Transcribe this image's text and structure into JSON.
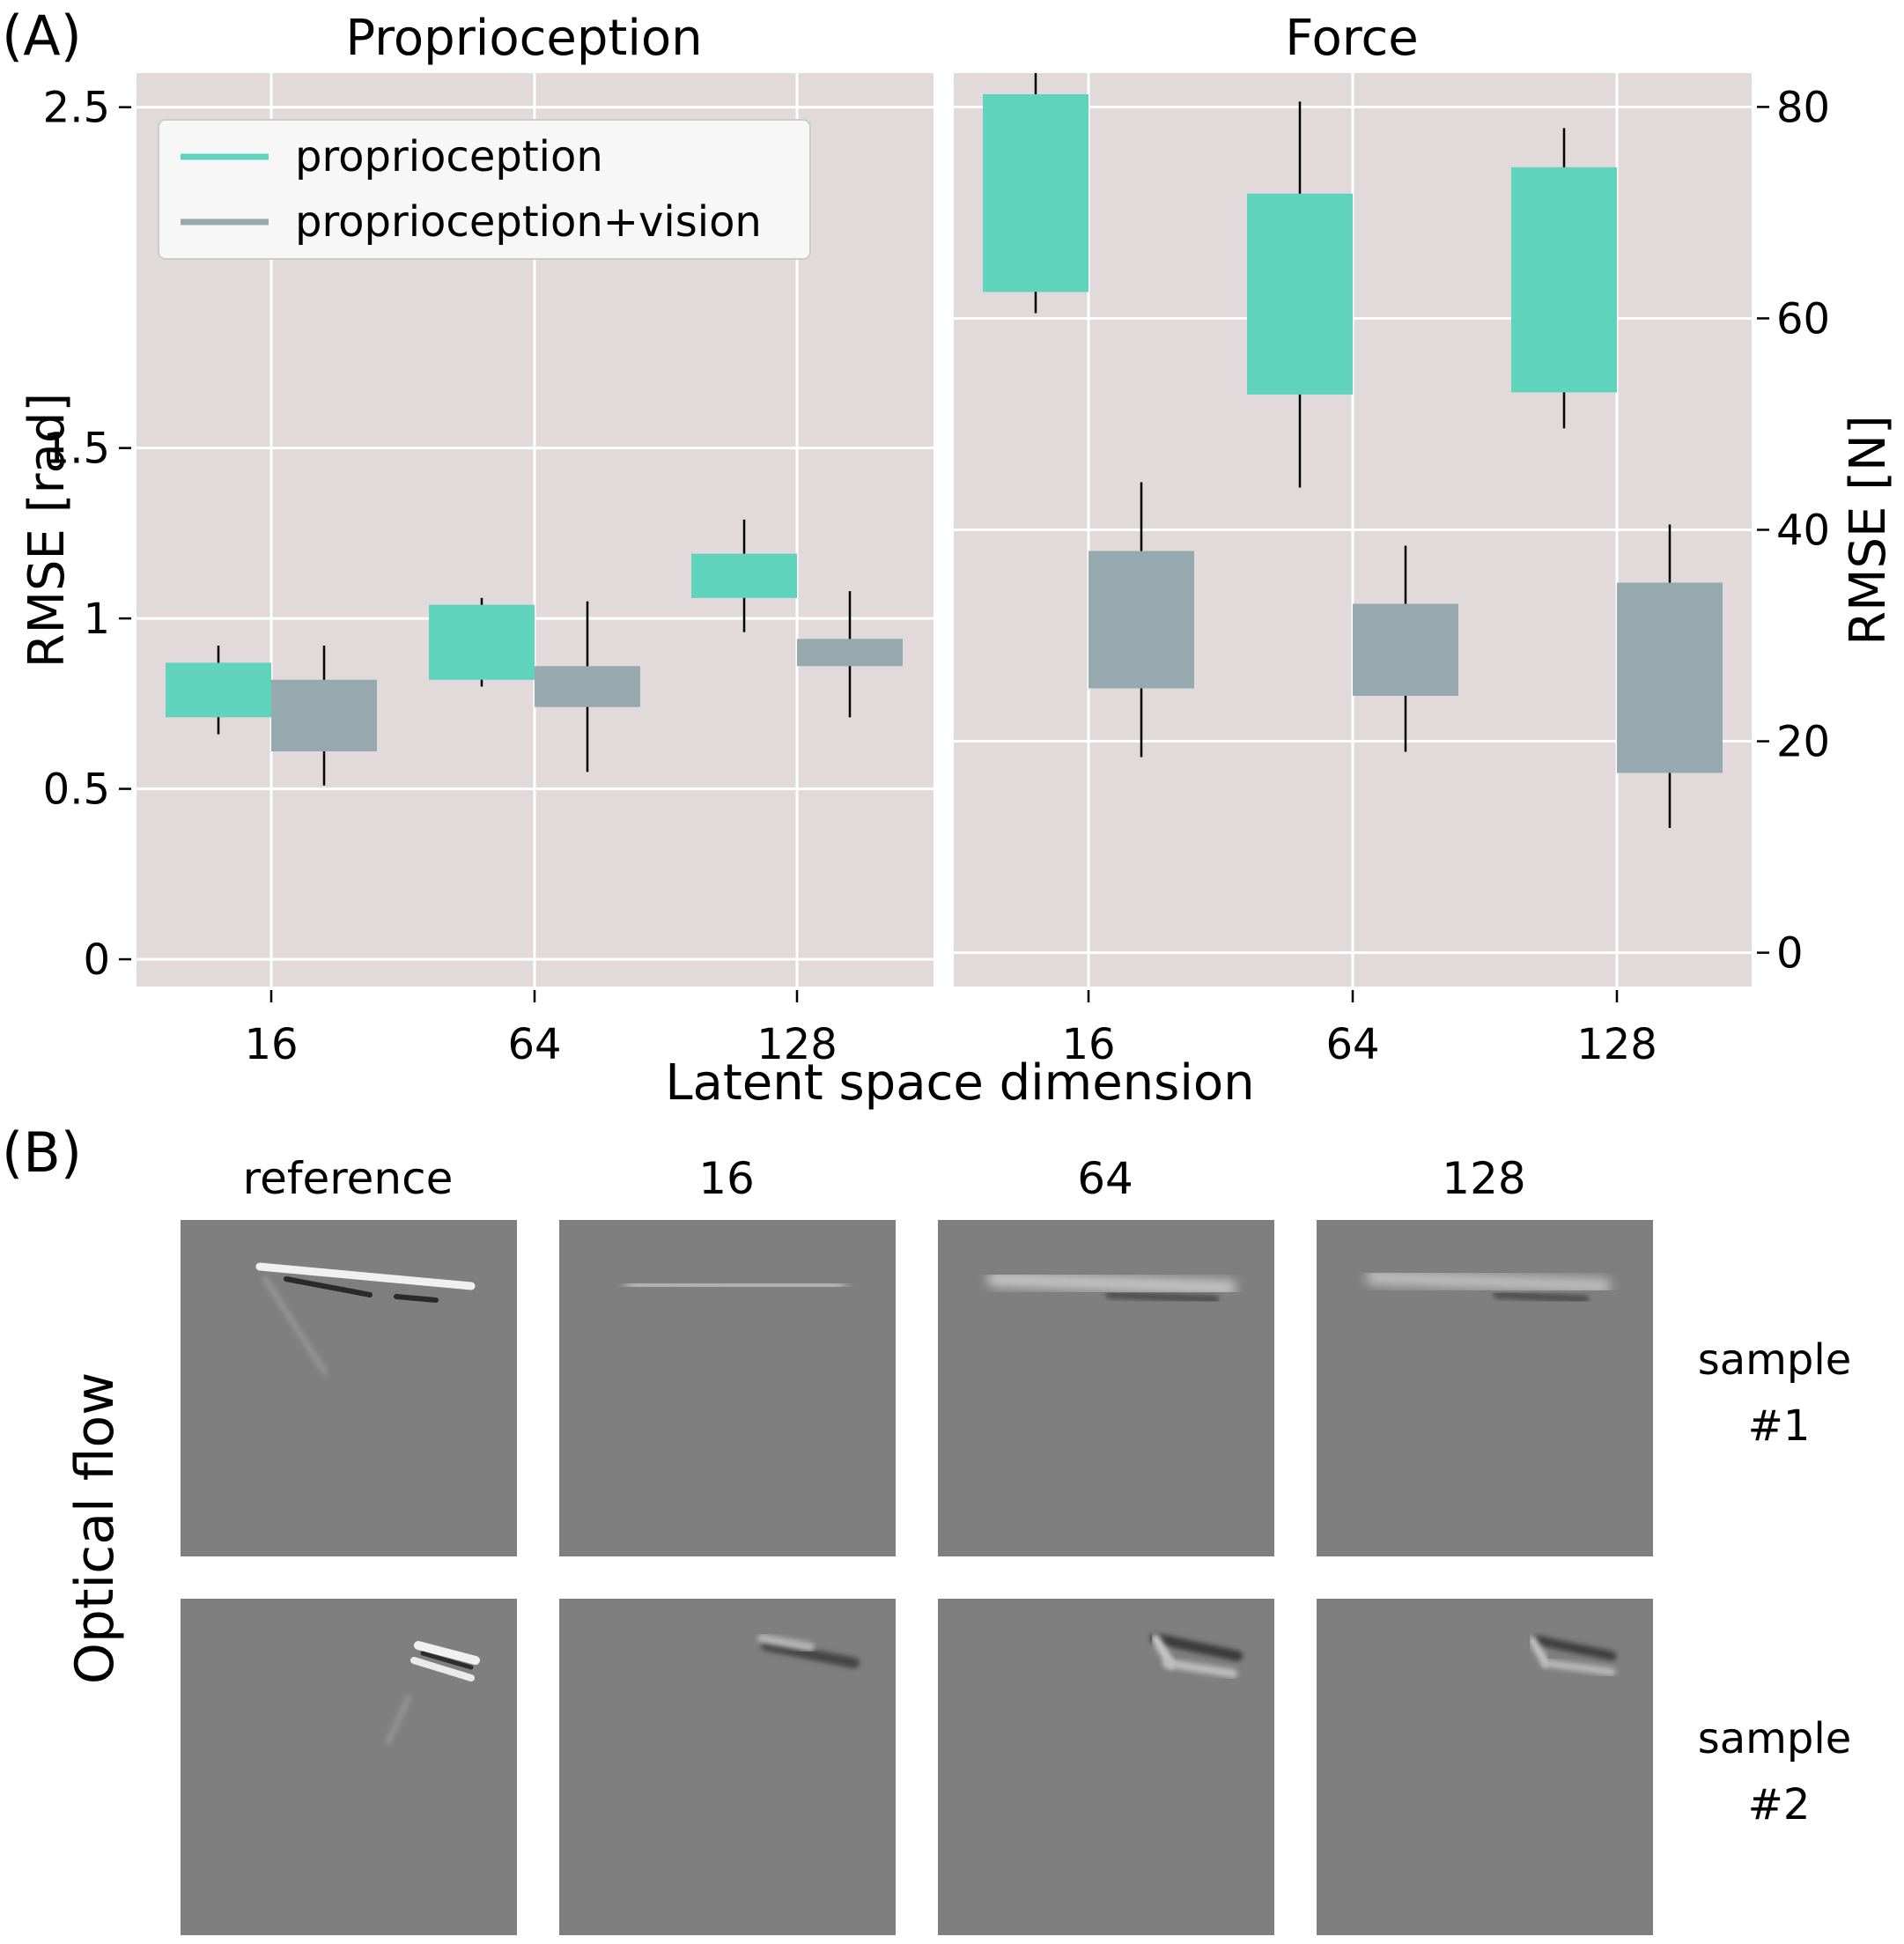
{
  "chart_data": [
    {
      "type": "box",
      "panel_label": "(A)",
      "title": "Proprioception",
      "xlabel": "Latent space dimension",
      "ylabel": "RMSE [rad]",
      "categories": [
        "16",
        "64",
        "128"
      ],
      "ylim": [
        -0.08,
        2.6
      ],
      "yticks": [
        0,
        0.5,
        1,
        1.5,
        2.5
      ],
      "yticklabels": [
        "0",
        "0.5",
        "1",
        "1.5",
        "2.5"
      ],
      "grid": true,
      "legend_position": "top-left",
      "series": [
        {
          "name": "proprioception",
          "color": "#5fd3bc",
          "boxes": [
            {
              "category": "16",
              "whisker_low": 0.66,
              "q1": 0.71,
              "q3": 0.87,
              "whisker_high": 0.92
            },
            {
              "category": "64",
              "whisker_low": 0.8,
              "q1": 0.82,
              "q3": 1.04,
              "whisker_high": 1.06
            },
            {
              "category": "128",
              "whisker_low": 0.96,
              "q1": 1.06,
              "q3": 1.19,
              "whisker_high": 1.29
            }
          ]
        },
        {
          "name": "proprioception+vision",
          "color": "#95a9ae",
          "boxes": [
            {
              "category": "16",
              "whisker_low": 0.51,
              "q1": 0.61,
              "q3": 0.82,
              "whisker_high": 0.92
            },
            {
              "category": "64",
              "whisker_low": 0.55,
              "q1": 0.74,
              "q3": 0.86,
              "whisker_high": 1.05
            },
            {
              "category": "128",
              "whisker_low": 0.71,
              "q1": 0.86,
              "q3": 0.94,
              "whisker_high": 1.08
            }
          ]
        }
      ]
    },
    {
      "type": "box",
      "title": "Force",
      "ylabel": "RMSE [N]",
      "categories": [
        "16",
        "64",
        "128"
      ],
      "ylim": [
        -3.2,
        83.2
      ],
      "yticks": [
        0,
        20,
        40,
        60,
        80
      ],
      "yticklabels": [
        "0",
        "20",
        "40",
        "60",
        "80"
      ],
      "grid": true,
      "series": [
        {
          "name": "proprioception",
          "color": "#5fd3bc",
          "boxes": [
            {
              "category": "16",
              "whisker_low": 60.5,
              "q1": 62.5,
              "q3": 81.2,
              "whisker_high": 83.2
            },
            {
              "category": "64",
              "whisker_low": 44.0,
              "q1": 52.8,
              "q3": 71.8,
              "whisker_high": 80.5
            },
            {
              "category": "128",
              "whisker_low": 49.6,
              "q1": 53.0,
              "q3": 74.3,
              "whisker_high": 78.0
            }
          ]
        },
        {
          "name": "proprioception+vision",
          "color": "#95a9ae",
          "boxes": [
            {
              "category": "16",
              "whisker_low": 18.5,
              "q1": 25.0,
              "q3": 38.0,
              "whisker_high": 44.5
            },
            {
              "category": "64",
              "whisker_low": 19.0,
              "q1": 24.3,
              "q3": 33.0,
              "whisker_high": 38.5
            },
            {
              "category": "128",
              "whisker_low": 11.8,
              "q1": 17.0,
              "q3": 35.0,
              "whisker_high": 40.5
            }
          ]
        }
      ]
    }
  ],
  "panel_b": {
    "panel_label": "(B)",
    "row_axis_label": "Optical flow",
    "columns": [
      "reference",
      "16",
      "64",
      "128"
    ],
    "rows": [
      {
        "label_line1": "sample",
        "label_line2": "#1"
      },
      {
        "label_line1": "sample",
        "label_line2": "#2"
      }
    ],
    "tile_color": "#7f7f7f"
  }
}
